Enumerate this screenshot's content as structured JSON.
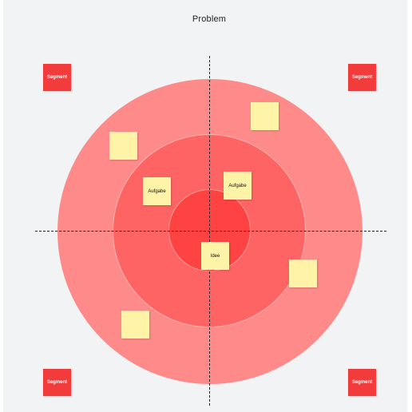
{
  "title": "Problem",
  "colors": {
    "background": "#f2f3f5",
    "outer_ring": "#ff8a8a",
    "middle_ring": "#ff6464",
    "inner_ring": "#ff4242",
    "segment": "#f23b3b",
    "sticky_note": "#fff3a8"
  },
  "segments": [
    "Segment",
    "Segment",
    "Segment",
    "Segment"
  ],
  "notes": [
    "",
    "",
    "Aufgabe",
    "Aufgabe",
    "Idee",
    "",
    ""
  ]
}
